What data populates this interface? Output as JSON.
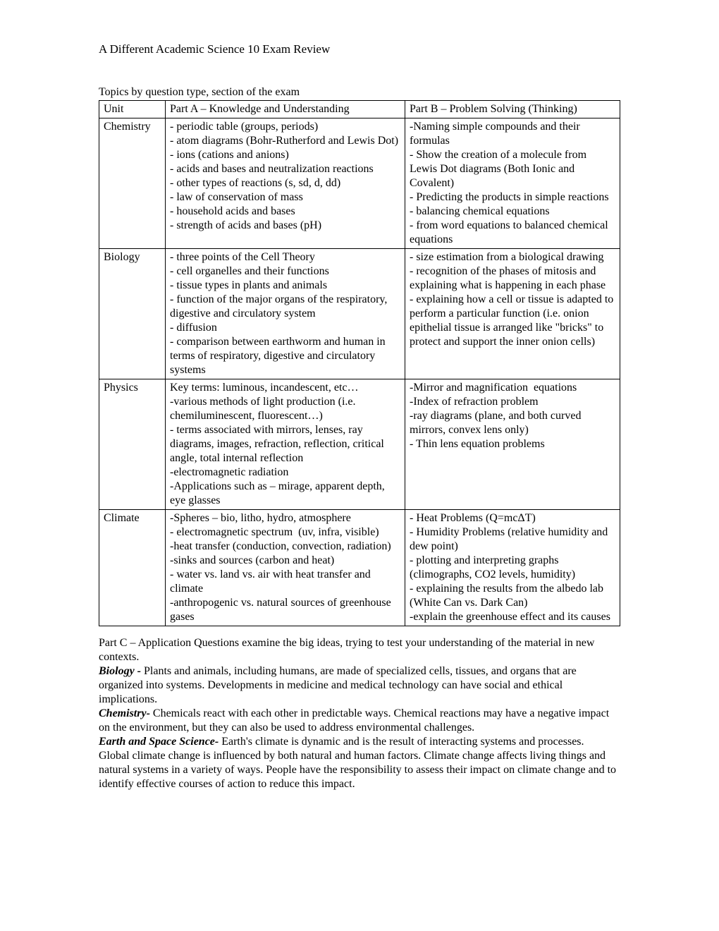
{
  "title": "A Different Academic Science 10 Exam Review",
  "subtitle": "Topics by question type, section of the exam",
  "table": {
    "headers": {
      "unit": "Unit",
      "partA": "Part A – Knowledge and Understanding",
      "partB": "Part B – Problem Solving (Thinking)"
    },
    "rows": [
      {
        "unit": "Chemistry",
        "partA": "- periodic table (groups, periods)\n- atom diagrams (Bohr-Rutherford and Lewis Dot)\n- ions (cations and anions)\n- acids and bases and neutralization reactions\n- other types of reactions (s, sd, d, dd)\n- law of conservation of mass\n- household acids and bases\n- strength of acids and bases (pH)",
        "partB": "-Naming simple compounds and their formulas\n- Show the creation of a molecule from Lewis Dot diagrams (Both Ionic and Covalent)\n- Predicting the products in simple reactions\n- balancing chemical equations\n- from word equations to balanced chemical equations"
      },
      {
        "unit": "Biology",
        "partA": "- three points of the Cell Theory\n- cell organelles and their functions\n- tissue types in plants and animals\n- function of the major organs of the respiratory, digestive and circulatory system\n- diffusion\n- comparison between earthworm and human in terms of respiratory, digestive and circulatory systems\n",
        "partB": "- size estimation from a biological drawing\n- recognition of the phases of mitosis and explaining what is happening in each phase\n- explaining how a cell or tissue is adapted to perform a particular function (i.e. onion epithelial tissue is arranged like \"bricks\" to protect and support the inner onion cells)"
      },
      {
        "unit": "Physics",
        "partA": "Key terms: luminous, incandescent, etc…\n-various methods of light production (i.e. chemiluminescent, fluorescent…)\n- terms associated with mirrors, lenses, ray diagrams, images, refraction, reflection, critical angle, total internal reflection\n-electromagnetic radiation\n-Applications such as – mirage, apparent depth, eye glasses",
        "partB": "-Mirror and magnification  equations\n-Index of refraction problem\n-ray diagrams (plane, and both curved mirrors, convex lens only)\n- Thin lens equation problems"
      },
      {
        "unit": "Climate",
        "partA": "-Spheres – bio, litho, hydro, atmosphere\n- electromagnetic spectrum  (uv, infra, visible)\n-heat transfer (conduction, convection, radiation)\n-sinks and sources (carbon and heat)\n- water vs. land vs. air with heat transfer and climate\n-anthropogenic vs. natural sources of greenhouse gases",
        "partB": "- Heat Problems (Q=mcΔT)\n- Humidity Problems (relative humidity and dew point)\n- plotting and interpreting graphs (climographs, CO2 levels, humidity)\n- explaining the results from the albedo lab (White Can vs. Dark Can)\n-explain the greenhouse effect and its causes"
      }
    ]
  },
  "partC": {
    "intro": "Part C – Application Questions examine the big ideas, trying to test your understanding of the material in new contexts.",
    "subjects": [
      {
        "label": "Biology - ",
        "text": "Plants and animals, including humans, are made of specialized cells, tissues, and organs that are organized into systems. Developments in medicine and medical technology can have social and ethical implications."
      },
      {
        "label": "Chemistry- ",
        "text": "Chemicals react with each other in predictable ways.  Chemical reactions may have a negative impact on the environment, but they can also be used to address environmental challenges."
      },
      {
        "label": "Earth and Space Science- ",
        "text": "Earth's climate is dynamic and is the result of interacting systems and processes."
      }
    ],
    "closing": "Global climate change is influenced by both natural and human factors. Climate change affects living things and natural systems in a variety of ways.  People have the responsibility to assess their impact on climate change and to identify effective courses of action to reduce this impact."
  }
}
